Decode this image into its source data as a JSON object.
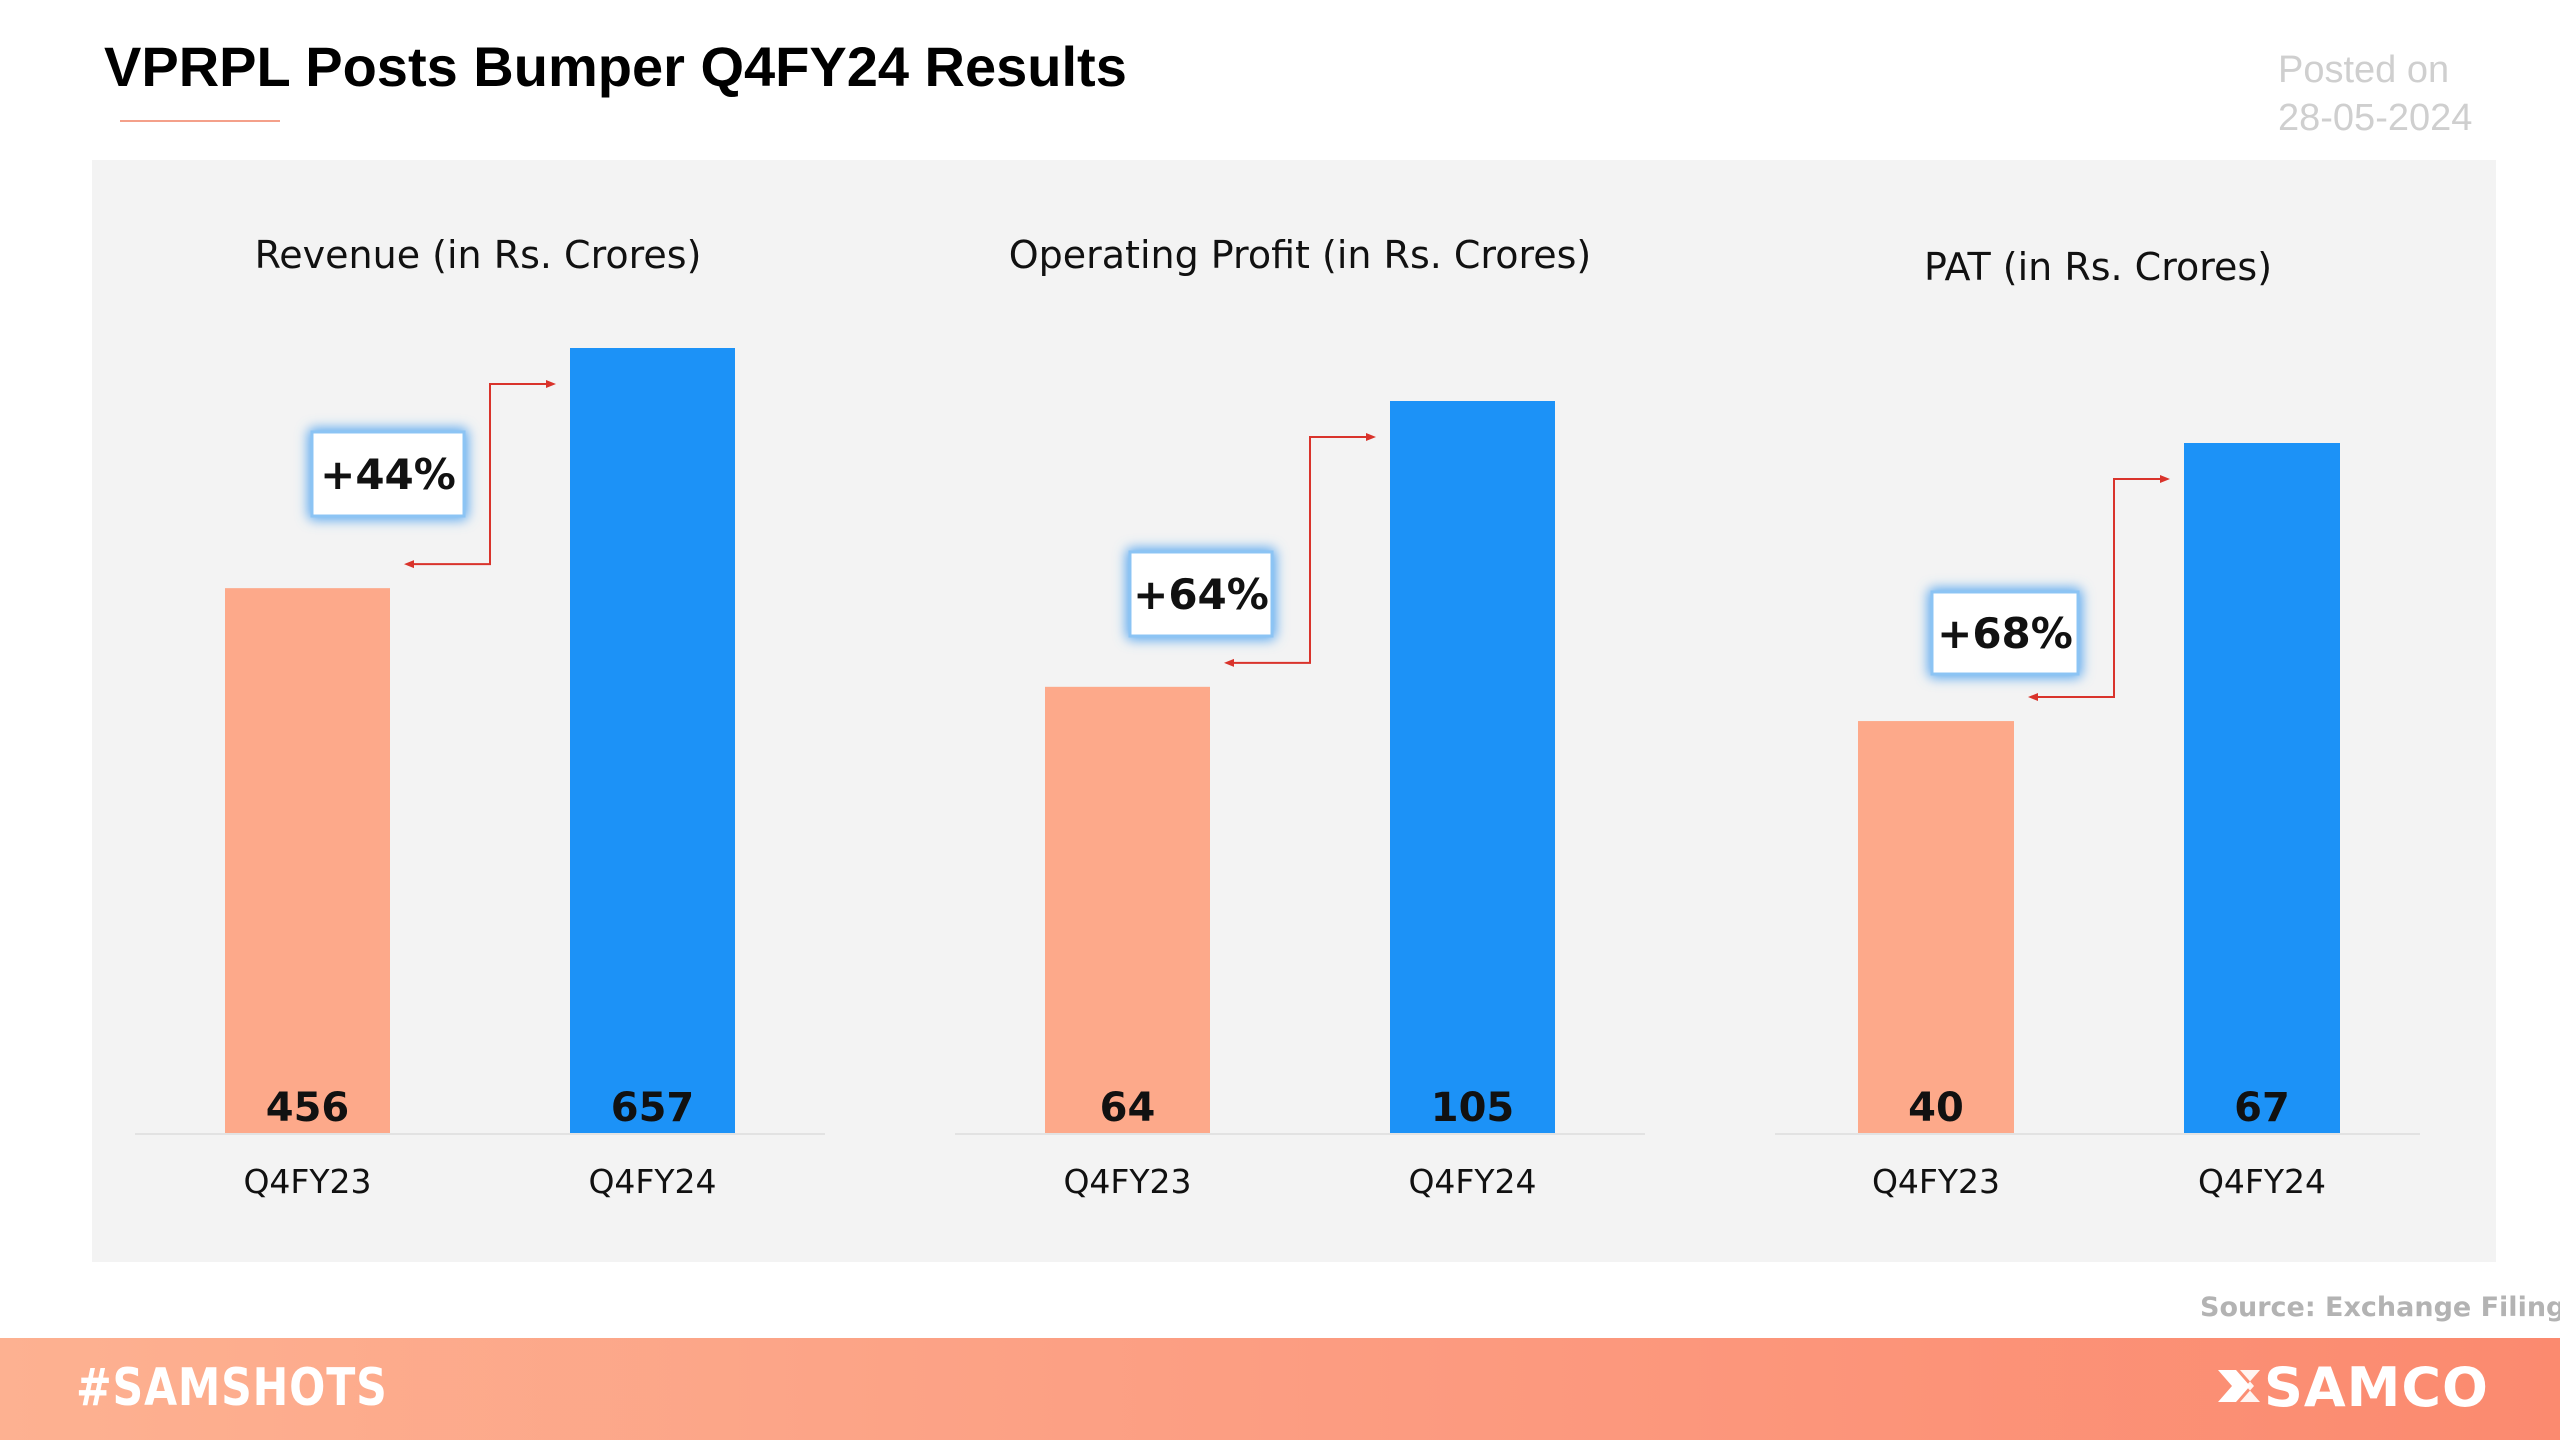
{
  "header": {
    "title": "VPRPL Posts Bumper Q4FY24 Results",
    "posted_label": "Posted on",
    "posted_date": "28-05-2024"
  },
  "colors": {
    "prev_bar": "#fda98a",
    "curr_bar": "#1c92f7",
    "arrow": "#d9332b",
    "badge_glow": "#5aa8f0"
  },
  "chart_data": [
    {
      "type": "bar",
      "title": "Revenue (in Rs. Crores)",
      "categories": [
        "Q4FY23",
        "Q4FY24"
      ],
      "values": [
        456,
        657
      ],
      "value_labels": [
        "456",
        "657"
      ],
      "growth_label": "+44%"
    },
    {
      "type": "bar",
      "title": "Operating Profit (in Rs. Crores)",
      "categories": [
        "Q4FY23",
        "Q4FY24"
      ],
      "values": [
        64,
        105
      ],
      "value_labels": [
        "64",
        "105"
      ],
      "growth_label": "+64%"
    },
    {
      "type": "bar",
      "title": "PAT (in Rs. Crores)",
      "categories": [
        "Q4FY23",
        "Q4FY24"
      ],
      "values": [
        40,
        67
      ],
      "value_labels": [
        "40",
        "67"
      ],
      "growth_label": "+68%"
    }
  ],
  "source": "Source:  Exchange Filings",
  "footer": {
    "hashtag": "#SAMSHOTS",
    "brand": "SAMCO",
    "brand_icon": "samco-logo-icon"
  }
}
